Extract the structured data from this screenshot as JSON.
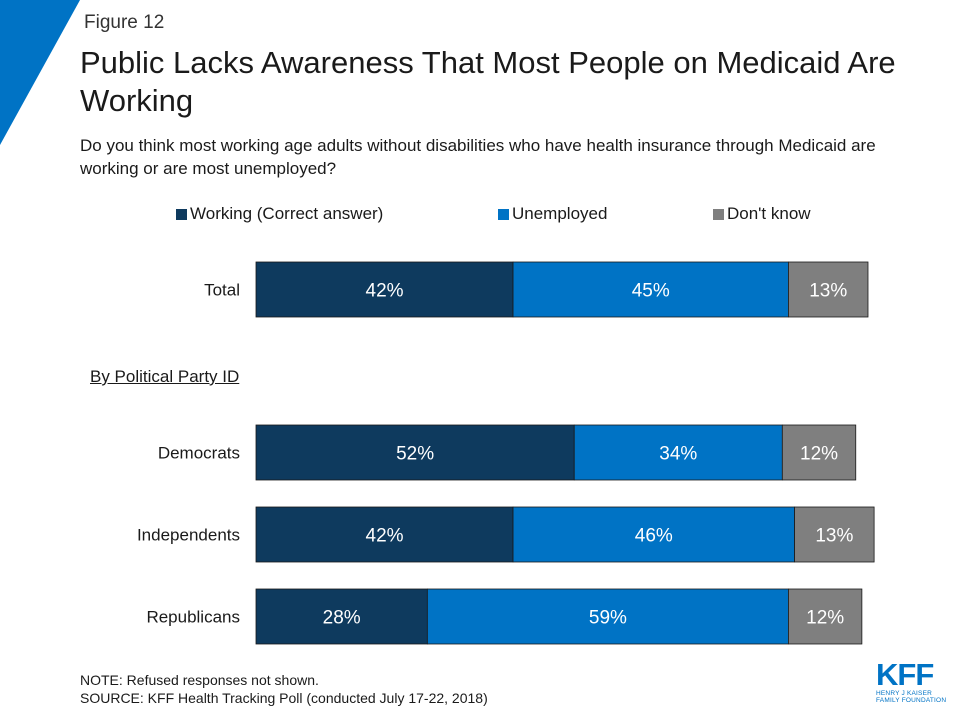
{
  "header": {
    "figure_label": "Figure 12",
    "title": "Public Lacks Awareness That Most People on Medicaid Are Working",
    "subtitle": "Do you think most working age adults without disabilities who have health insurance through Medicaid are working or are most unemployed?"
  },
  "colors": {
    "corner": "#0073c5",
    "working": "#0e3a5e",
    "unemployed": "#0073c5",
    "dont_know": "#7f7f7f"
  },
  "chart_data": {
    "type": "bar",
    "orientation": "horizontal",
    "stacked": true,
    "categories": [
      "Total",
      "Democrats",
      "Independents",
      "Republicans"
    ],
    "group_label": "By Political Party ID",
    "series": [
      {
        "name": "Working (Correct answer)",
        "values": [
          42,
          52,
          42,
          28
        ]
      },
      {
        "name": "Unemployed",
        "values": [
          45,
          34,
          46,
          59
        ]
      },
      {
        "name": "Don't know",
        "values": [
          13,
          12,
          13,
          12
        ]
      }
    ],
    "value_suffix": "%",
    "legend_position": "top",
    "grid": false
  },
  "footer": {
    "note": "NOTE: Refused responses not shown.",
    "source": "SOURCE: KFF Health Tracking Poll (conducted July 17-22, 2018)"
  },
  "logo": {
    "mark": "KFF",
    "line1": "HENRY J KAISER",
    "line2": "FAMILY FOUNDATION"
  }
}
